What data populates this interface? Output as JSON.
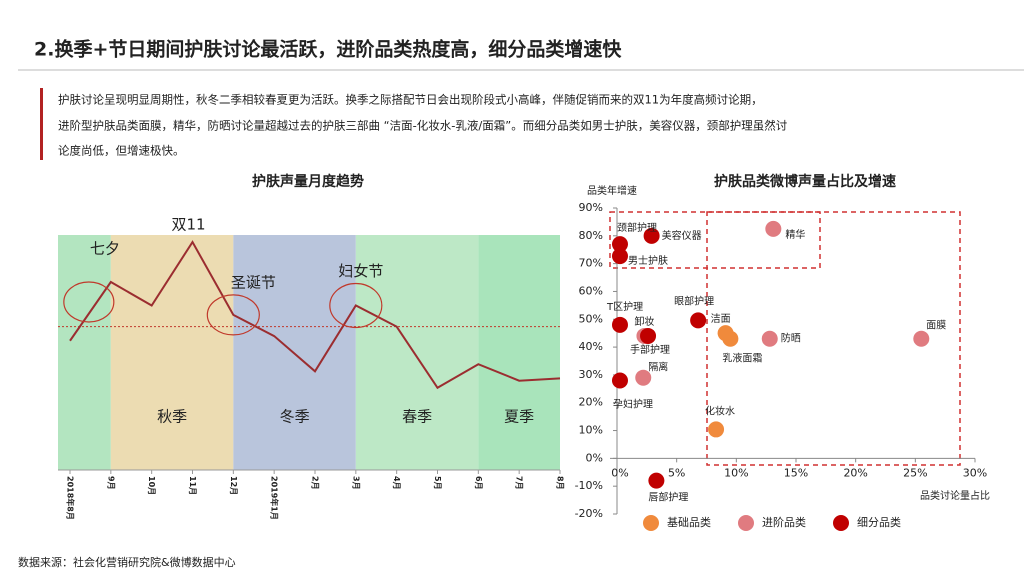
{
  "header": {
    "title": "2.换季+节日期间护肤讨论最活跃，进阶品类热度高，细分品类增速快",
    "lines": [
      "护肤讨论呈现明显周期性，秋冬二季相较春夏更为活跃。换季之际搭配节日会出现阶段式小高峰，伴随促销而来的双11为年度高频讨论期，",
      "进阶型护肤品类面膜，精华，防晒讨论量超越过去的护肤三部曲 “洁面-化妆水-乳液/面霜”。而细分品类如男士护肤，美容仪器，颈部护理虽然讨",
      "论度尚低，但增速极快。"
    ]
  },
  "source": "数据来源：社会化营销研究院&微博数据中心",
  "chart_data": [
    {
      "type": "line",
      "title": "护肤声量月度趋势",
      "categories": [
        "2018年8月",
        "9月",
        "10月",
        "11月",
        "12月",
        "2019年1月",
        "2月",
        "3月",
        "4月",
        "5月",
        "6月",
        "7月",
        "8月"
      ],
      "values": [
        55,
        80,
        70,
        97,
        66,
        57,
        42,
        70,
        61,
        35,
        45,
        38,
        39
      ],
      "color": "#9b2d30",
      "ylim": [
        0,
        100
      ],
      "reference_line": 61,
      "bands": [
        {
          "from": "2018年8月",
          "to": "9月",
          "color": "#b3e5c0"
        },
        {
          "label": "秋季",
          "from": "9月",
          "to": "12月",
          "color": "#ecdcb2"
        },
        {
          "label": "冬季",
          "from": "12月",
          "to": "3月",
          "color": "#b9c5dc"
        },
        {
          "label": "春季",
          "from": "3月",
          "to": "6月",
          "color": "#bde8c6"
        },
        {
          "label": "夏季",
          "from": "6月",
          "to": "8月",
          "color": "#a9e4bb"
        }
      ],
      "annotations": [
        {
          "text": "七夕",
          "category": "9月"
        },
        {
          "text": "双11",
          "category": "11月"
        },
        {
          "text": "圣诞节",
          "category": "12月"
        },
        {
          "text": "妇女节",
          "category": "3月"
        }
      ]
    },
    {
      "type": "scatter",
      "title": "护肤品类微博声量占比及增速",
      "xlabel": "品类讨论量占比",
      "ylabel": "品类年增速",
      "xlim": [
        0,
        30
      ],
      "ylim": [
        -20,
        90
      ],
      "xticks": [
        {
          "value": 0,
          "label": "0%"
        },
        {
          "value": 5,
          "label": "5%"
        },
        {
          "value": 10,
          "label": "10%"
        },
        {
          "value": 15,
          "label": "15%"
        },
        {
          "value": 20,
          "label": "20%"
        },
        {
          "value": 25,
          "label": "25%"
        },
        {
          "value": 30,
          "label": "30%"
        }
      ],
      "yticks": [
        {
          "value": -20,
          "label": "-20%"
        },
        {
          "value": -10,
          "label": "-10%"
        },
        {
          "value": 0,
          "label": "0%"
        },
        {
          "value": 10,
          "label": "10%"
        },
        {
          "value": 20,
          "label": "20%"
        },
        {
          "value": 30,
          "label": "30%"
        },
        {
          "value": 40,
          "label": "40%"
        },
        {
          "value": 50,
          "label": "50%"
        },
        {
          "value": 60,
          "label": "60%"
        },
        {
          "value": 70,
          "label": "70%"
        },
        {
          "value": 80,
          "label": "80%"
        },
        {
          "value": 90,
          "label": "90%"
        }
      ],
      "series": [
        {
          "name": "基础品类",
          "color": "#f08a3c",
          "points": [
            {
              "label": "洁面",
              "x": 9.1,
              "y": 45
            },
            {
              "label": "乳液面霜",
              "x": 9.5,
              "y": 43
            },
            {
              "label": "化妆水",
              "x": 8.3,
              "y": 10.4
            }
          ]
        },
        {
          "name": "进阶品类",
          "color": "#e07b80",
          "points": [
            {
              "label": "精华",
              "x": 13.1,
              "y": 82.5
            },
            {
              "label": "卸妆",
              "x": 2.3,
              "y": 44
            },
            {
              "label": "防晒",
              "x": 12.8,
              "y": 43
            },
            {
              "label": "面膜",
              "x": 25.5,
              "y": 43
            },
            {
              "label": "隔离",
              "x": 2.2,
              "y": 29
            }
          ]
        },
        {
          "name": "细分品类",
          "color": "#c00000",
          "points": [
            {
              "label": "颈部护理",
              "x": 0.25,
              "y": 77
            },
            {
              "label": "男士护肤",
              "x": 0.25,
              "y": 72.7
            },
            {
              "label": "美容仪器",
              "x": 2.9,
              "y": 80
            },
            {
              "label": "T区护理",
              "x": 0.25,
              "y": 48
            },
            {
              "label": "手部护理",
              "x": 2.6,
              "y": 44
            },
            {
              "label": "眼部护理",
              "x": 6.8,
              "y": 49.6
            },
            {
              "label": "孕妇护理",
              "x": 0.25,
              "y": 28
            },
            {
              "label": "唇部护理",
              "x": 3.3,
              "y": -8
            }
          ]
        }
      ]
    }
  ]
}
